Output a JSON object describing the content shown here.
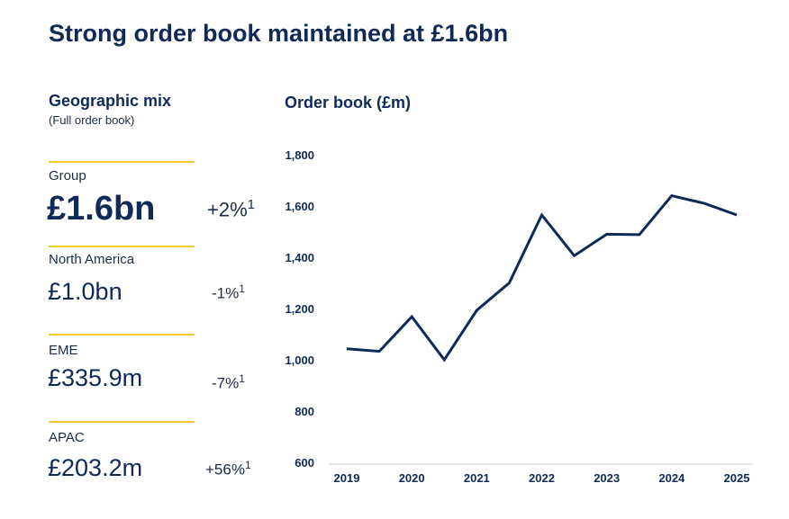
{
  "title": "Strong order book maintained at £1.6bn",
  "geo": {
    "title": "Geographic mix",
    "subtitle": "(Full order book)",
    "regions": [
      {
        "label": "Group",
        "value": "£1.6bn",
        "change": "+2%",
        "note": "1"
      },
      {
        "label": "North America",
        "value": "£1.0bn",
        "change": "-1%",
        "note": "1"
      },
      {
        "label": "EME",
        "value": "£335.9m",
        "change": "-7%",
        "note": "1"
      },
      {
        "label": "APAC",
        "value": "£203.2m",
        "change": "+56%",
        "note": "1"
      }
    ]
  },
  "colors": {
    "navy": "#0f2a57",
    "gold": "#f3c935"
  },
  "chart_data": {
    "type": "line",
    "title": "Order book (£m)",
    "xlabel": "",
    "ylabel": "",
    "ylim": [
      600,
      1800
    ],
    "yticks": [
      "1,800",
      "1,600",
      "1,400",
      "1,200",
      "1,000",
      "800",
      "600"
    ],
    "ytick_values": [
      1800,
      1600,
      1400,
      1200,
      1000,
      800,
      600
    ],
    "xticks": [
      "2019",
      "2020",
      "2021",
      "2022",
      "2023",
      "2024",
      "2025"
    ],
    "xtick_values": [
      2019,
      2020,
      2021,
      2022,
      2023,
      2024,
      2025
    ],
    "series": [
      {
        "name": "Order book",
        "x": [
          2019,
          2019.5,
          2020,
          2020.5,
          2021,
          2021.5,
          2022,
          2022.5,
          2023,
          2023.5,
          2024,
          2024.5,
          2025
        ],
        "values": [
          1043,
          1033,
          1168,
          1000,
          1193,
          1300,
          1565,
          1406,
          1490,
          1488,
          1640,
          1610,
          1565
        ]
      }
    ]
  }
}
